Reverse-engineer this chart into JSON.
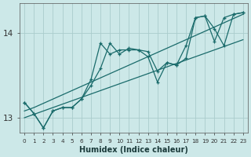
{
  "xlabel": "Humidex (Indice chaleur)",
  "ylabel": "",
  "background_color": "#cce8e8",
  "grid_color": "#aacccc",
  "line_color": "#1a6b6b",
  "x_data": [
    0,
    1,
    2,
    3,
    4,
    5,
    6,
    7,
    8,
    9,
    10,
    11,
    12,
    13,
    14,
    15,
    16,
    17,
    18,
    19,
    20,
    21,
    22,
    23
  ],
  "series1": [
    13.18,
    13.05,
    12.88,
    13.08,
    13.12,
    13.12,
    13.22,
    13.38,
    13.58,
    13.88,
    13.75,
    13.82,
    13.8,
    13.78,
    13.55,
    13.65,
    13.62,
    13.85,
    14.18,
    14.2,
    13.9,
    14.18,
    14.22,
    14.24
  ],
  "series2": [
    13.18,
    13.05,
    12.88,
    13.08,
    13.12,
    13.12,
    13.22,
    13.45,
    13.88,
    13.75,
    13.8,
    13.8,
    13.8,
    13.72,
    13.42,
    13.65,
    13.62,
    13.7,
    14.18,
    14.2,
    14.05,
    13.85,
    14.22,
    14.24
  ],
  "trend1": [
    13.0,
    13.04,
    13.08,
    13.12,
    13.16,
    13.2,
    13.24,
    13.28,
    13.32,
    13.36,
    13.4,
    13.44,
    13.48,
    13.52,
    13.56,
    13.6,
    13.64,
    13.68,
    13.72,
    13.76,
    13.8,
    13.84,
    13.88,
    13.92
  ],
  "trend2": [
    13.08,
    13.12,
    13.17,
    13.22,
    13.27,
    13.32,
    13.37,
    13.42,
    13.47,
    13.52,
    13.57,
    13.62,
    13.67,
    13.72,
    13.77,
    13.82,
    13.87,
    13.92,
    13.97,
    14.02,
    14.07,
    14.12,
    14.17,
    14.22
  ],
  "ylim": [
    12.82,
    14.35
  ],
  "yticks": [
    13,
    14
  ],
  "xlim": [
    -0.5,
    23.5
  ],
  "figsize": [
    3.2,
    2.0
  ],
  "dpi": 100
}
